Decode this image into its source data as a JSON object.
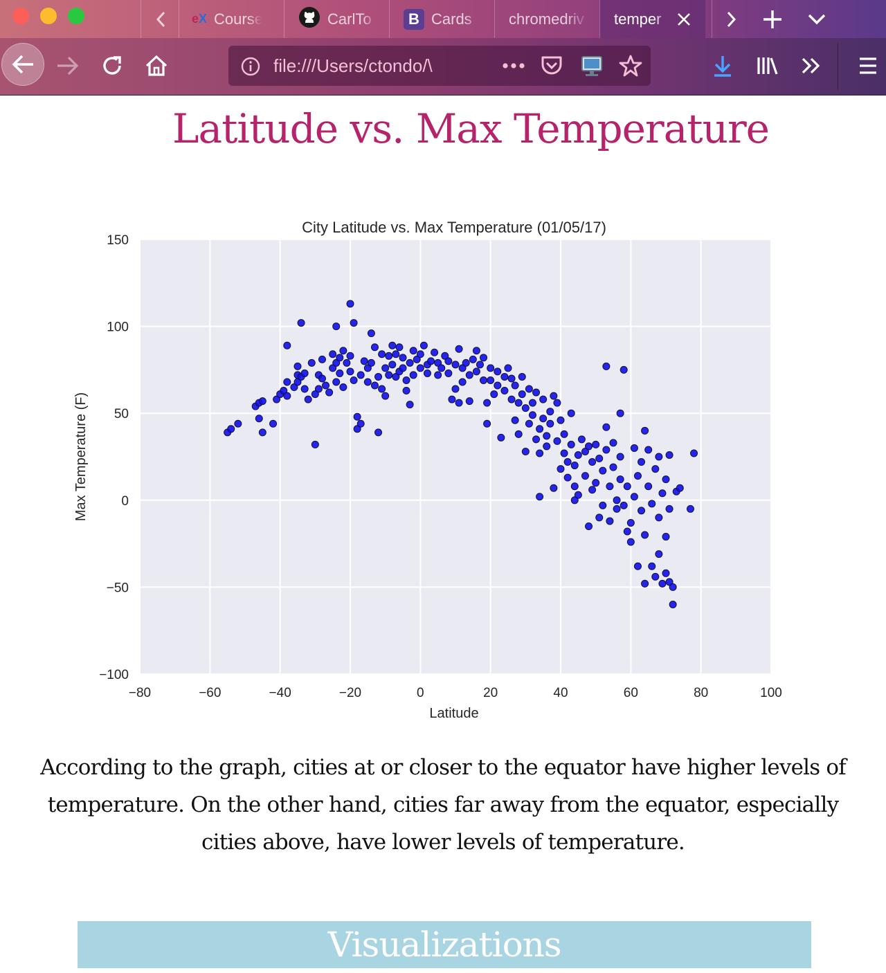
{
  "browser": {
    "tabs": [
      {
        "label": "Course",
        "icon": "edx-icon",
        "active": false
      },
      {
        "label": "CarlTo",
        "icon": "github-icon",
        "active": false
      },
      {
        "label": "Cards",
        "icon": "bootstrap-icon",
        "active": false
      },
      {
        "label": "chromedriv",
        "icon": "",
        "active": false
      },
      {
        "label": "temper",
        "icon": "",
        "active": true
      }
    ],
    "favicon_text": {
      "edx": "edX",
      "bootstrap": "B"
    },
    "url": "file:///Users/ctondo/\\",
    "colors": {
      "accent": "#b5236a",
      "download": "#4aa3ff"
    }
  },
  "page": {
    "title": "Latitude vs. Max Temperature",
    "summary": "According to the graph, cities at or closer to the equator have higher levels of temperature. On the other hand, cities far away from the equator, especially cities above, have lower levels of temperature.",
    "next_section": "Visualizations"
  },
  "chart_data": {
    "type": "scatter",
    "title": "City Latitude vs. Max Temperature (01/05/17)",
    "xlabel": "Latitude",
    "ylabel": "Max Temperature (F)",
    "xlim": [
      -80,
      100
    ],
    "ylim": [
      -100,
      150
    ],
    "xticks": [
      -80,
      -60,
      -40,
      -20,
      0,
      20,
      40,
      60,
      80,
      100
    ],
    "yticks": [
      -100,
      -50,
      0,
      50,
      100,
      150
    ],
    "xtick_labels": [
      "−80",
      "−60",
      "−40",
      "−20",
      "0",
      "20",
      "40",
      "60",
      "80",
      "100"
    ],
    "ytick_labels": [
      "−100",
      "−50",
      "0",
      "50",
      "100",
      "150"
    ],
    "grid": true,
    "marker_color": "#1010ee",
    "series": [
      {
        "points": [
          [
            -55,
            39
          ],
          [
            -54,
            41
          ],
          [
            -52,
            44
          ],
          [
            -47,
            54
          ],
          [
            -46,
            56
          ],
          [
            -45,
            57
          ],
          [
            -46,
            47
          ],
          [
            -45,
            39
          ],
          [
            -42,
            44
          ],
          [
            -41,
            58
          ],
          [
            -40,
            61
          ],
          [
            -39,
            63
          ],
          [
            -38,
            60
          ],
          [
            -38,
            68
          ],
          [
            -38,
            89
          ],
          [
            -36,
            65
          ],
          [
            -35,
            68
          ],
          [
            -35,
            72
          ],
          [
            -35,
            77
          ],
          [
            -34,
            102
          ],
          [
            -34,
            71
          ],
          [
            -33,
            64
          ],
          [
            -33,
            73
          ],
          [
            -32,
            58
          ],
          [
            -31,
            79
          ],
          [
            -30,
            32
          ],
          [
            -30,
            61
          ],
          [
            -29,
            64
          ],
          [
            -29,
            72
          ],
          [
            -28,
            70
          ],
          [
            -28,
            81
          ],
          [
            -27,
            66
          ],
          [
            -26,
            62
          ],
          [
            -25,
            76
          ],
          [
            -25,
            84
          ],
          [
            -24,
            79
          ],
          [
            -24,
            68
          ],
          [
            -24,
            100
          ],
          [
            -23,
            73
          ],
          [
            -23,
            82
          ],
          [
            -22,
            86
          ],
          [
            -22,
            65
          ],
          [
            -21,
            79
          ],
          [
            -20,
            74
          ],
          [
            -20,
            113
          ],
          [
            -20,
            83
          ],
          [
            -19,
            102
          ],
          [
            -19,
            69
          ],
          [
            -18,
            48
          ],
          [
            -18,
            41
          ],
          [
            -17,
            44
          ],
          [
            -17,
            72
          ],
          [
            -16,
            80
          ],
          [
            -15,
            68
          ],
          [
            -15,
            76
          ],
          [
            -14,
            96
          ],
          [
            -14,
            79
          ],
          [
            -13,
            66
          ],
          [
            -13,
            88
          ],
          [
            -12,
            71
          ],
          [
            -12,
            39
          ],
          [
            -11,
            84
          ],
          [
            -11,
            64
          ],
          [
            -10,
            76
          ],
          [
            -10,
            60
          ],
          [
            -9,
            72
          ],
          [
            -9,
            83
          ],
          [
            -8,
            89
          ],
          [
            -8,
            78
          ],
          [
            -7,
            71
          ],
          [
            -7,
            84
          ],
          [
            -6,
            74
          ],
          [
            -6,
            88
          ],
          [
            -5,
            76
          ],
          [
            -5,
            82
          ],
          [
            -4,
            63
          ],
          [
            -4,
            69
          ],
          [
            -3,
            55
          ],
          [
            -3,
            79
          ],
          [
            -2,
            86
          ],
          [
            -2,
            72
          ],
          [
            -1,
            81
          ],
          [
            0,
            76
          ],
          [
            0,
            84
          ],
          [
            1,
            89
          ],
          [
            2,
            78
          ],
          [
            2,
            73
          ],
          [
            3,
            80
          ],
          [
            4,
            85
          ],
          [
            5,
            72
          ],
          [
            5,
            79
          ],
          [
            6,
            76
          ],
          [
            7,
            83
          ],
          [
            8,
            73
          ],
          [
            8,
            80
          ],
          [
            9,
            58
          ],
          [
            10,
            64
          ],
          [
            10,
            78
          ],
          [
            11,
            56
          ],
          [
            11,
            87
          ],
          [
            12,
            68
          ],
          [
            12,
            76
          ],
          [
            13,
            79
          ],
          [
            14,
            57
          ],
          [
            14,
            72
          ],
          [
            15,
            81
          ],
          [
            16,
            74
          ],
          [
            16,
            86
          ],
          [
            17,
            78
          ],
          [
            18,
            69
          ],
          [
            18,
            82
          ],
          [
            19,
            44
          ],
          [
            19,
            56
          ],
          [
            20,
            76
          ],
          [
            20,
            69
          ],
          [
            21,
            61
          ],
          [
            22,
            74
          ],
          [
            22,
            66
          ],
          [
            23,
            36
          ],
          [
            24,
            71
          ],
          [
            24,
            63
          ],
          [
            25,
            76
          ],
          [
            26,
            58
          ],
          [
            26,
            70
          ],
          [
            27,
            46
          ],
          [
            27,
            66
          ],
          [
            28,
            56
          ],
          [
            28,
            38
          ],
          [
            29,
            71
          ],
          [
            29,
            61
          ],
          [
            30,
            53
          ],
          [
            30,
            28
          ],
          [
            31,
            44
          ],
          [
            31,
            64
          ],
          [
            32,
            49
          ],
          [
            32,
            56
          ],
          [
            33,
            35
          ],
          [
            33,
            62
          ],
          [
            34,
            41
          ],
          [
            34,
            27
          ],
          [
            34,
            2
          ],
          [
            35,
            58
          ],
          [
            35,
            47
          ],
          [
            36,
            37
          ],
          [
            36,
            31
          ],
          [
            37,
            51
          ],
          [
            37,
            44
          ],
          [
            38,
            60
          ],
          [
            38,
            7
          ],
          [
            39,
            56
          ],
          [
            39,
            34
          ],
          [
            40,
            46
          ],
          [
            40,
            18
          ],
          [
            41,
            38
          ],
          [
            41,
            27
          ],
          [
            42,
            22
          ],
          [
            42,
            13
          ],
          [
            43,
            32
          ],
          [
            43,
            50
          ],
          [
            44,
            20
          ],
          [
            44,
            8
          ],
          [
            44,
            0
          ],
          [
            45,
            26
          ],
          [
            45,
            3
          ],
          [
            46,
            35
          ],
          [
            47,
            14
          ],
          [
            47,
            28
          ],
          [
            48,
            -15
          ],
          [
            48,
            31
          ],
          [
            49,
            22
          ],
          [
            49,
            6
          ],
          [
            50,
            10
          ],
          [
            50,
            32
          ],
          [
            51,
            -10
          ],
          [
            51,
            24
          ],
          [
            52,
            17
          ],
          [
            52,
            -3
          ],
          [
            53,
            42
          ],
          [
            53,
            29
          ],
          [
            53,
            77
          ],
          [
            54,
            8
          ],
          [
            54,
            -12
          ],
          [
            55,
            19
          ],
          [
            55,
            33
          ],
          [
            56,
            0
          ],
          [
            56,
            -5
          ],
          [
            57,
            25
          ],
          [
            57,
            50
          ],
          [
            57,
            12
          ],
          [
            58,
            -3
          ],
          [
            58,
            75
          ],
          [
            59,
            8
          ],
          [
            59,
            -18
          ],
          [
            60,
            -24
          ],
          [
            60,
            -13
          ],
          [
            61,
            2
          ],
          [
            61,
            30
          ],
          [
            62,
            -38
          ],
          [
            62,
            14
          ],
          [
            63,
            -6
          ],
          [
            63,
            22
          ],
          [
            64,
            -48
          ],
          [
            64,
            40
          ],
          [
            64,
            -20
          ],
          [
            65,
            8
          ],
          [
            65,
            29
          ],
          [
            66,
            -38
          ],
          [
            66,
            -2
          ],
          [
            67,
            18
          ],
          [
            67,
            -44
          ],
          [
            68,
            -31
          ],
          [
            68,
            -10
          ],
          [
            68,
            25
          ],
          [
            69,
            -48
          ],
          [
            69,
            4
          ],
          [
            70,
            -42
          ],
          [
            70,
            -21
          ],
          [
            70,
            12
          ],
          [
            71,
            -47
          ],
          [
            71,
            -5
          ],
          [
            71,
            26
          ],
          [
            72,
            -50
          ],
          [
            72,
            -60
          ],
          [
            73,
            5
          ],
          [
            74,
            7
          ],
          [
            77,
            -5
          ],
          [
            78,
            27
          ]
        ]
      }
    ]
  }
}
